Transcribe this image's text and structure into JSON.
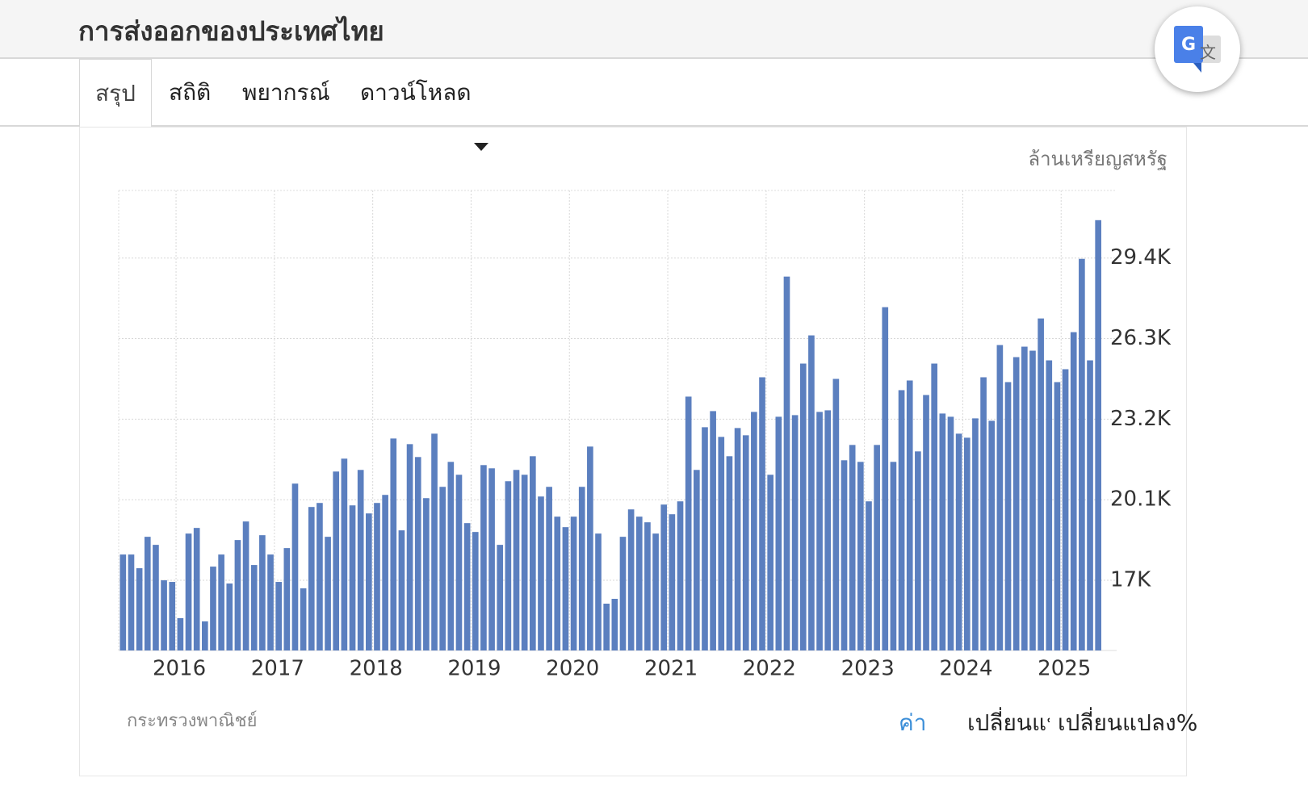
{
  "header": {
    "title": "การส่งออกของประเทศไทย"
  },
  "tabs": [
    "สรุป",
    "สถิติ",
    "พยากรณ์",
    "ดาวน์โหลด"
  ],
  "chart_data": {
    "type": "bar",
    "unit": "ล้านเหรียญสหรัฐ",
    "source": "กระทรวงพาณิชย์",
    "color": "#5b7fbf",
    "grid": true,
    "categories": [
      null,
      null,
      null,
      null,
      null,
      null,
      null,
      "2016",
      null,
      null,
      null,
      null,
      null,
      null,
      null,
      null,
      null,
      null,
      null,
      "2017",
      null,
      null,
      null,
      null,
      null,
      null,
      null,
      null,
      null,
      null,
      null,
      "2018",
      null,
      null,
      null,
      null,
      null,
      null,
      null,
      null,
      null,
      null,
      null,
      "2019",
      null,
      null,
      null,
      null,
      null,
      null,
      null,
      null,
      null,
      null,
      null,
      "2020",
      null,
      null,
      null,
      null,
      null,
      null,
      null,
      null,
      null,
      null,
      null,
      "2021",
      null,
      null,
      null,
      null,
      null,
      null,
      null,
      null,
      null,
      null,
      null,
      "2022",
      null,
      null,
      null,
      null,
      null,
      null,
      null,
      null,
      null,
      null,
      null,
      "2023",
      null,
      null,
      null,
      null,
      null,
      null,
      null,
      null,
      null,
      null,
      null,
      "2024",
      null,
      null,
      null,
      null,
      null,
      null,
      null,
      null,
      null,
      null,
      null,
      "2025",
      null,
      null,
      null,
      null
    ],
    "values": [
      17992,
      17992,
      17465,
      18674,
      18364,
      17000,
      16938,
      15543,
      18798,
      19015,
      15419,
      17527,
      17992,
      16876,
      18550,
      19263,
      17589,
      18736,
      17992,
      16938,
      18240,
      20720,
      16690,
      19821,
      19976,
      18674,
      21185,
      21681,
      19883,
      21247,
      19573,
      19976,
      20286,
      22456,
      18922,
      22239,
      21743,
      20162,
      22642,
      20596,
      21557,
      21061,
      19201,
      18860,
      21433,
      21309,
      18364,
      20813,
      21247,
      21061,
      21774,
      20224,
      20596,
      19449,
      19046,
      19449,
      20596,
      22146,
      18798,
      16101,
      16287,
      18674,
      19728,
      19449,
      19232,
      18798,
      19914,
      19542,
      20038,
      24068,
      21247,
      22890,
      23510,
      22518,
      21774,
      22859,
      22580,
      23479,
      24812,
      21061,
      23293,
      28687,
      23355,
      25339,
      26424,
      23479,
      23541,
      24750,
      21619,
      22208,
      21557,
      20038,
      22208,
      27509,
      21557,
      24316,
      24688,
      21960,
      24130,
      25339,
      23417,
      23293,
      22642,
      22487,
      23231,
      24812,
      23138,
      26052,
      24626,
      25587,
      25990,
      25835,
      27075,
      25463,
      24626,
      25122,
      26548,
      29369,
      25463,
      30857
    ],
    "ylim": [
      14300,
      32000
    ],
    "yticks": [
      {
        "value": 17000,
        "label": "17K"
      },
      {
        "value": 20100,
        "label": "20.1K"
      },
      {
        "value": 23200,
        "label": "23.2K"
      },
      {
        "value": 26300,
        "label": "26.3K"
      },
      {
        "value": 29400,
        "label": "29.4K"
      }
    ]
  },
  "buttons": [
    "ค่า",
    "เปลี่ยนแปลง",
    "เปลี่ยนแปลง%"
  ]
}
